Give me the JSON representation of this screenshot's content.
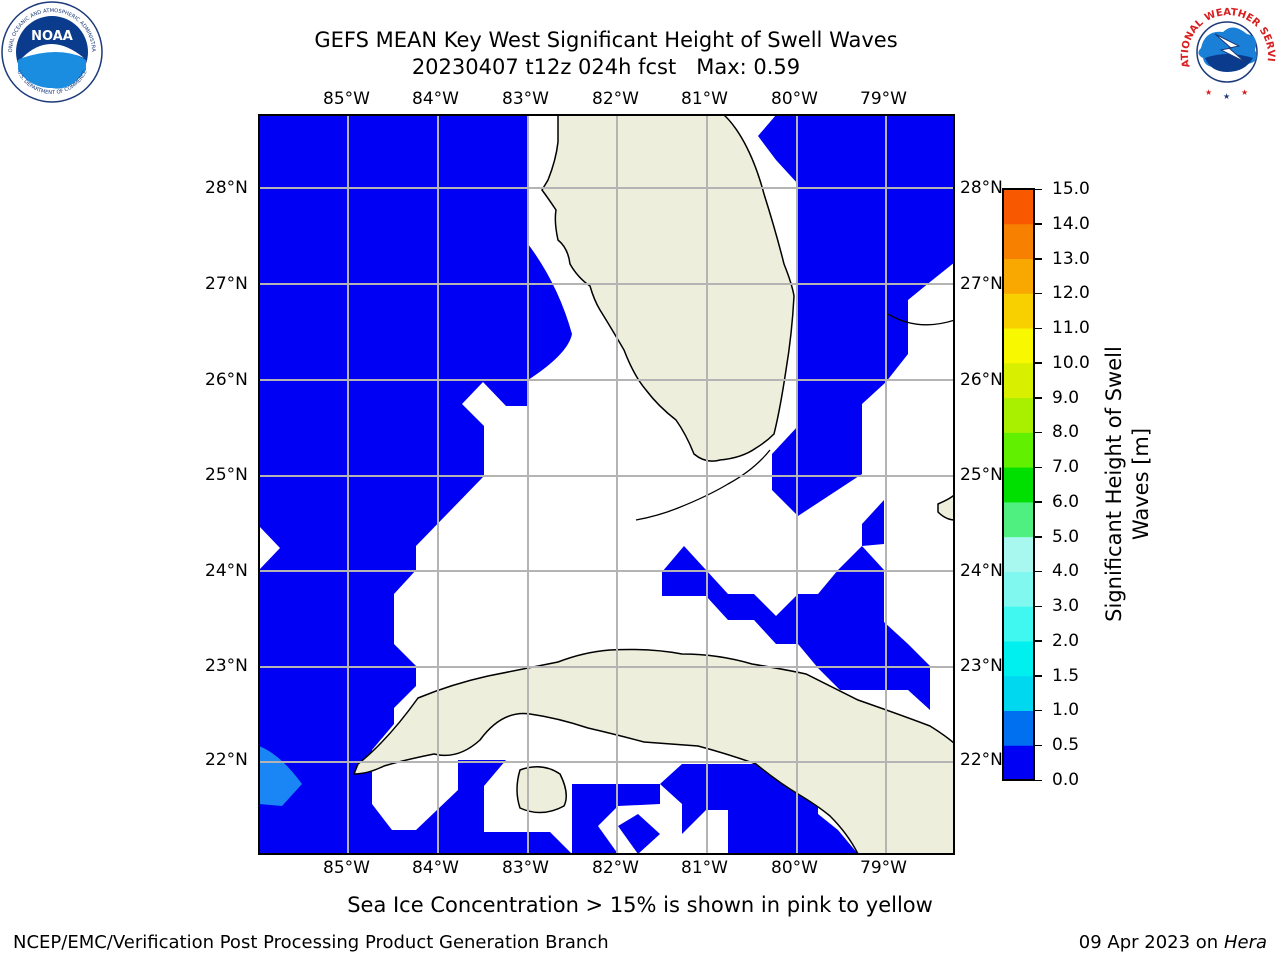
{
  "header": {
    "title_line1": "GEFS MEAN Key West Significant Height of Swell Waves",
    "title_line2": "20230407 t12z 024h fcst   Max: 0.59"
  },
  "logos": {
    "noaa_text": "NOAA",
    "noaa_ring_top": "NATIONAL OCEANIC AND ATMOSPHERIC ADMINISTRATION",
    "noaa_ring_bottom": "U.S. DEPARTMENT OF COMMERCE",
    "nws_ring": "NATIONAL WEATHER SERVICE"
  },
  "map": {
    "lon_labels": [
      "85°W",
      "84°W",
      "83°W",
      "82°W",
      "81°W",
      "80°W",
      "79°W"
    ],
    "lat_labels": [
      "28°N",
      "27°N",
      "26°N",
      "25°N",
      "24°N",
      "23°N",
      "22°N"
    ]
  },
  "colorbar": {
    "label": "Significant Height of Swell Waves [m]",
    "ticks": [
      "15.0",
      "14.0",
      "13.0",
      "12.0",
      "11.0",
      "10.0",
      "9.0",
      "8.0",
      "7.0",
      "6.0",
      "5.0",
      "4.0",
      "3.0",
      "2.0",
      "1.5",
      "1.0",
      "0.5",
      "0.0"
    ],
    "colors_bottom_to_top": [
      "#0000f5",
      "#0070f0",
      "#00d8f0",
      "#00f0f0",
      "#40f8f0",
      "#80f8f0",
      "#a8f8f0",
      "#50f080",
      "#00e000",
      "#60f000",
      "#a8f000",
      "#d8f000",
      "#f8f800",
      "#f8d000",
      "#f8a800",
      "#f88000",
      "#f85800",
      "#f83000",
      "#f80000"
    ]
  },
  "footer": {
    "sea_ice_note": "Sea Ice Concentration > 15% is shown in pink to yellow",
    "branch": "NCEP/EMC/Verification Post Processing Product Generation Branch",
    "date_prefix": "09 Apr 2023 on ",
    "machine": "Hera"
  }
}
